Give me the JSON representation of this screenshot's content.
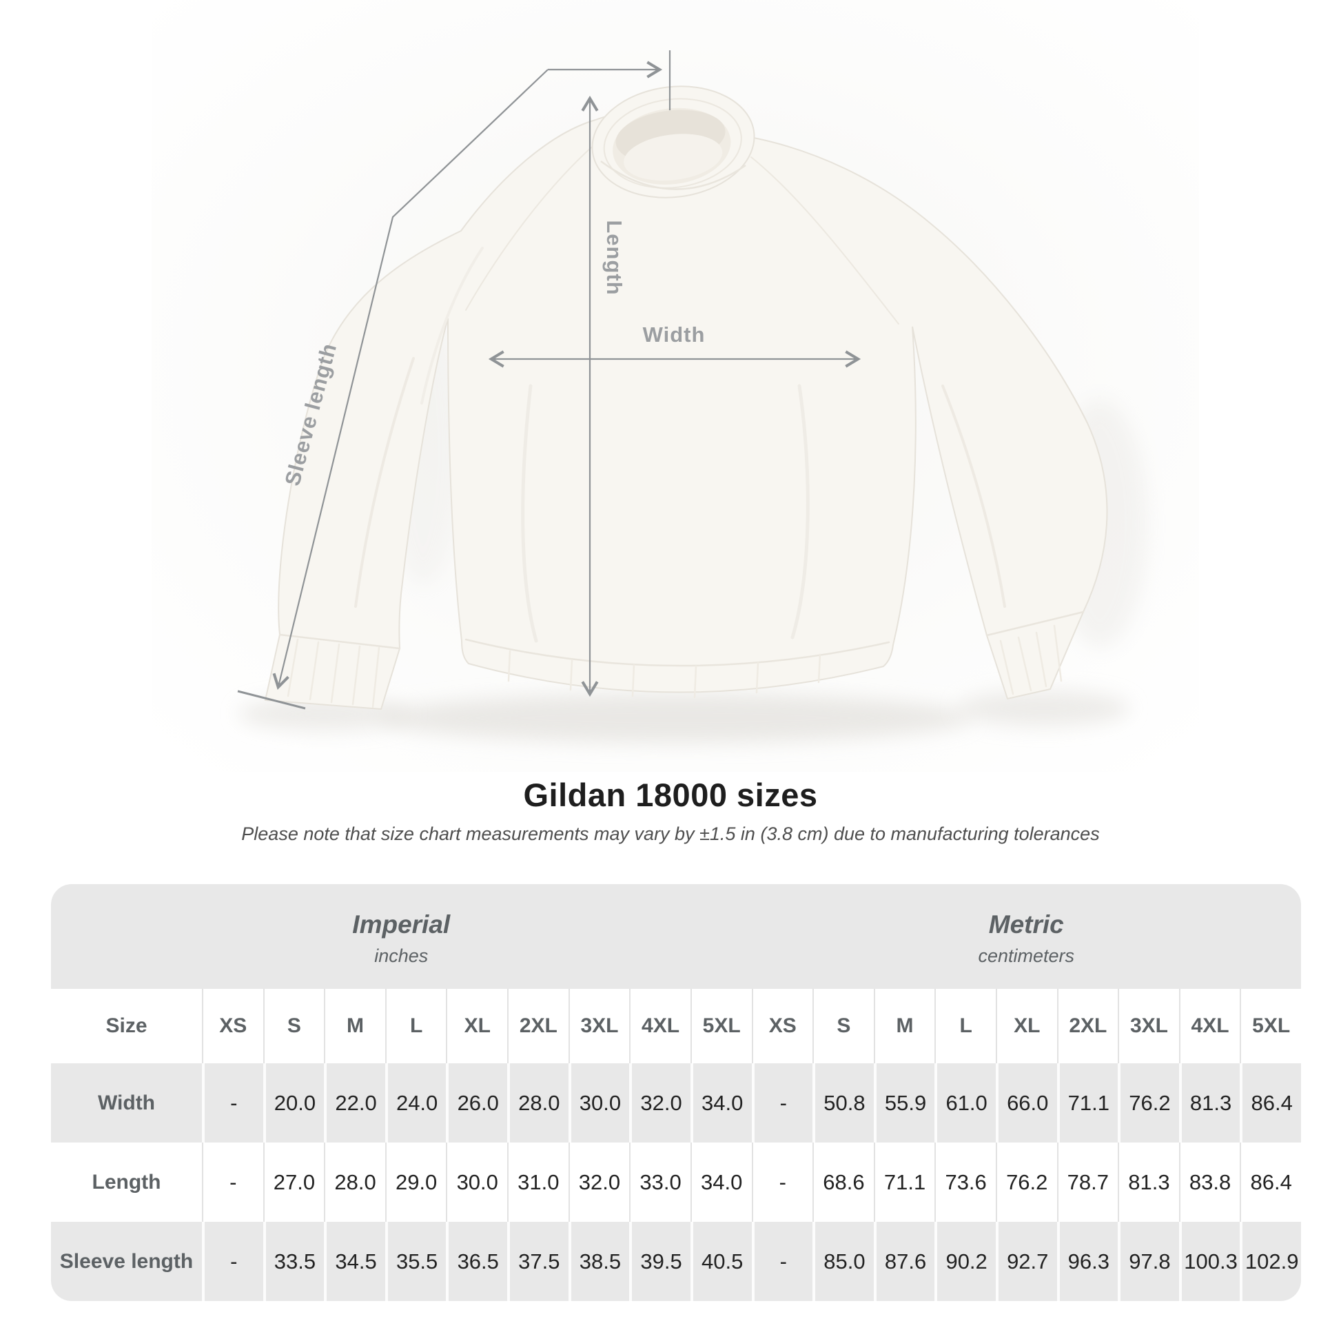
{
  "diagram": {
    "labels": {
      "length": "Length",
      "width": "Width",
      "sleeve": "Sleeve length"
    }
  },
  "heading": {
    "title": "Gildan 18000 sizes",
    "note": "Please note that size chart measurements may vary by ±1.5 in (3.8 cm) due to manufacturing tolerances"
  },
  "table": {
    "size_label": "Size",
    "unit_groups": [
      {
        "name": "Imperial",
        "unit": "inches"
      },
      {
        "name": "Metric",
        "unit": "centimeters"
      }
    ],
    "sizes": [
      "XS",
      "S",
      "M",
      "L",
      "XL",
      "2XL",
      "3XL",
      "4XL",
      "5XL"
    ],
    "rows": [
      {
        "label": "Width",
        "imperial": [
          "-",
          "20.0",
          "22.0",
          "24.0",
          "26.0",
          "28.0",
          "30.0",
          "32.0",
          "34.0"
        ],
        "metric": [
          "-",
          "50.8",
          "55.9",
          "61.0",
          "66.0",
          "71.1",
          "76.2",
          "81.3",
          "86.4"
        ]
      },
      {
        "label": "Length",
        "imperial": [
          "-",
          "27.0",
          "28.0",
          "29.0",
          "30.0",
          "31.0",
          "32.0",
          "33.0",
          "34.0"
        ],
        "metric": [
          "-",
          "68.6",
          "71.1",
          "73.6",
          "76.2",
          "78.7",
          "81.3",
          "83.8",
          "86.4"
        ]
      },
      {
        "label": "Sleeve length",
        "imperial": [
          "-",
          "33.5",
          "34.5",
          "35.5",
          "36.5",
          "37.5",
          "38.5",
          "39.5",
          "40.5"
        ],
        "metric": [
          "-",
          "85.0",
          "87.6",
          "90.2",
          "92.7",
          "96.3",
          "97.8",
          "100.3",
          "102.9"
        ]
      }
    ]
  },
  "chart_data": {
    "type": "table",
    "title": "Gildan 18000 sizes",
    "tolerance_note": "Please note that size chart measurements may vary by ±1.5 in (3.8 cm) due to manufacturing tolerances",
    "sizes": [
      "XS",
      "S",
      "M",
      "L",
      "XL",
      "2XL",
      "3XL",
      "4XL",
      "5XL"
    ],
    "measurements": [
      {
        "label": "Width",
        "inches": [
          null,
          20.0,
          22.0,
          24.0,
          26.0,
          28.0,
          30.0,
          32.0,
          34.0
        ],
        "centimeters": [
          null,
          50.8,
          55.9,
          61.0,
          66.0,
          71.1,
          76.2,
          81.3,
          86.4
        ]
      },
      {
        "label": "Length",
        "inches": [
          null,
          27.0,
          28.0,
          29.0,
          30.0,
          31.0,
          32.0,
          33.0,
          34.0
        ],
        "centimeters": [
          null,
          68.6,
          71.1,
          73.6,
          76.2,
          78.7,
          81.3,
          83.8,
          86.4
        ]
      },
      {
        "label": "Sleeve length",
        "inches": [
          null,
          33.5,
          34.5,
          35.5,
          36.5,
          37.5,
          38.5,
          39.5,
          40.5
        ],
        "centimeters": [
          null,
          85.0,
          87.6,
          90.2,
          92.7,
          96.3,
          97.8,
          100.3,
          102.9
        ]
      }
    ]
  },
  "colors": {
    "table_gray": "#e8e8e8",
    "divider_light": "#e2e2e2",
    "header_text": "#5c6164",
    "value_text": "#222222",
    "measure_line": "#8f9396",
    "measure_label": "#9b9ea1",
    "garment": "#f8f6f1"
  }
}
